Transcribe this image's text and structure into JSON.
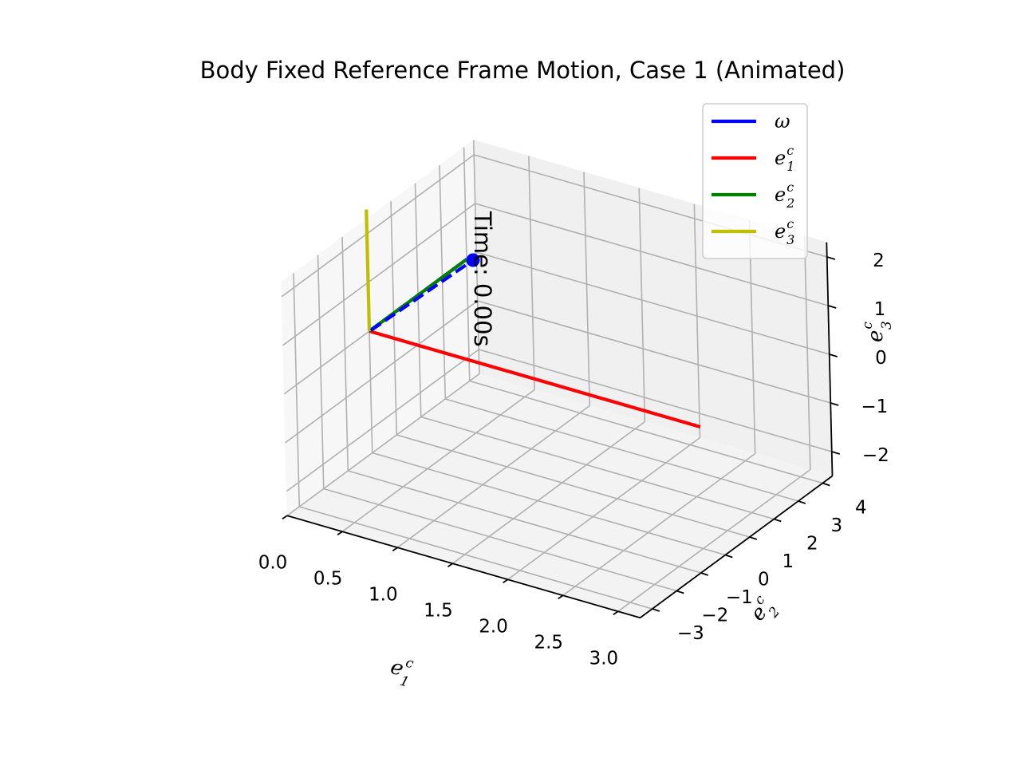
{
  "chart_data": {
    "type": "line",
    "title": "Body Fixed Reference Frame Motion, Case 1 (Animated)",
    "annotation": "Time: 0.00s",
    "axes": {
      "x": {
        "label": "e",
        "label_sup": "c",
        "label_sub": "1",
        "ticks": [
          "0.0",
          "0.5",
          "1.0",
          "1.5",
          "2.0",
          "2.5",
          "3.0"
        ],
        "tick_values": [
          0,
          0.5,
          1,
          1.5,
          2,
          2.5,
          3
        ],
        "lim": [
          0,
          3.2
        ]
      },
      "y": {
        "label": "e",
        "label_sup": "c",
        "label_sub": "2",
        "ticks": [
          "−3",
          "−2",
          "−1",
          "0",
          "1",
          "2",
          "3",
          "4"
        ],
        "tick_values": [
          -3,
          -2,
          -1,
          0,
          1,
          2,
          3,
          4
        ],
        "lim": [
          -3.5,
          4.4
        ]
      },
      "z": {
        "label": "e",
        "label_sup": "c",
        "label_sub": "3",
        "ticks": [
          "−2",
          "−1",
          "0",
          "1",
          "2"
        ],
        "tick_values": [
          -2,
          -1,
          0,
          1,
          2
        ],
        "lim": [
          -2.5,
          2.3
        ]
      }
    },
    "grid": true,
    "legend": {
      "placement": "top-right",
      "entries": [
        {
          "name": "ω",
          "sup": "",
          "sub": "",
          "color": "#0000ff"
        },
        {
          "name": "e",
          "sup": "c",
          "sub": "1",
          "color": "#ff0000"
        },
        {
          "name": "e",
          "sup": "c",
          "sub": "2",
          "color": "#008000"
        },
        {
          "name": "e",
          "sup": "c",
          "sub": "3",
          "color": "#bfbf00"
        }
      ]
    },
    "series": [
      {
        "name": "ω",
        "color": "#0000ff",
        "style": "dashed",
        "from": [
          0,
          0,
          0
        ],
        "to": [
          0,
          4,
          0
        ],
        "endpoint_marker": true
      },
      {
        "name": "e1c",
        "color": "#ff0000",
        "style": "solid",
        "from": [
          0,
          0,
          0
        ],
        "to": [
          3,
          0,
          0
        ]
      },
      {
        "name": "e2c",
        "color": "#008000",
        "style": "solid",
        "from": [
          0,
          0,
          0
        ],
        "to": [
          0,
          4,
          0
        ]
      },
      {
        "name": "e3c",
        "color": "#bfbf00",
        "style": "solid",
        "from": [
          0,
          0,
          0
        ],
        "to": [
          0,
          0,
          2.5
        ]
      }
    ]
  }
}
